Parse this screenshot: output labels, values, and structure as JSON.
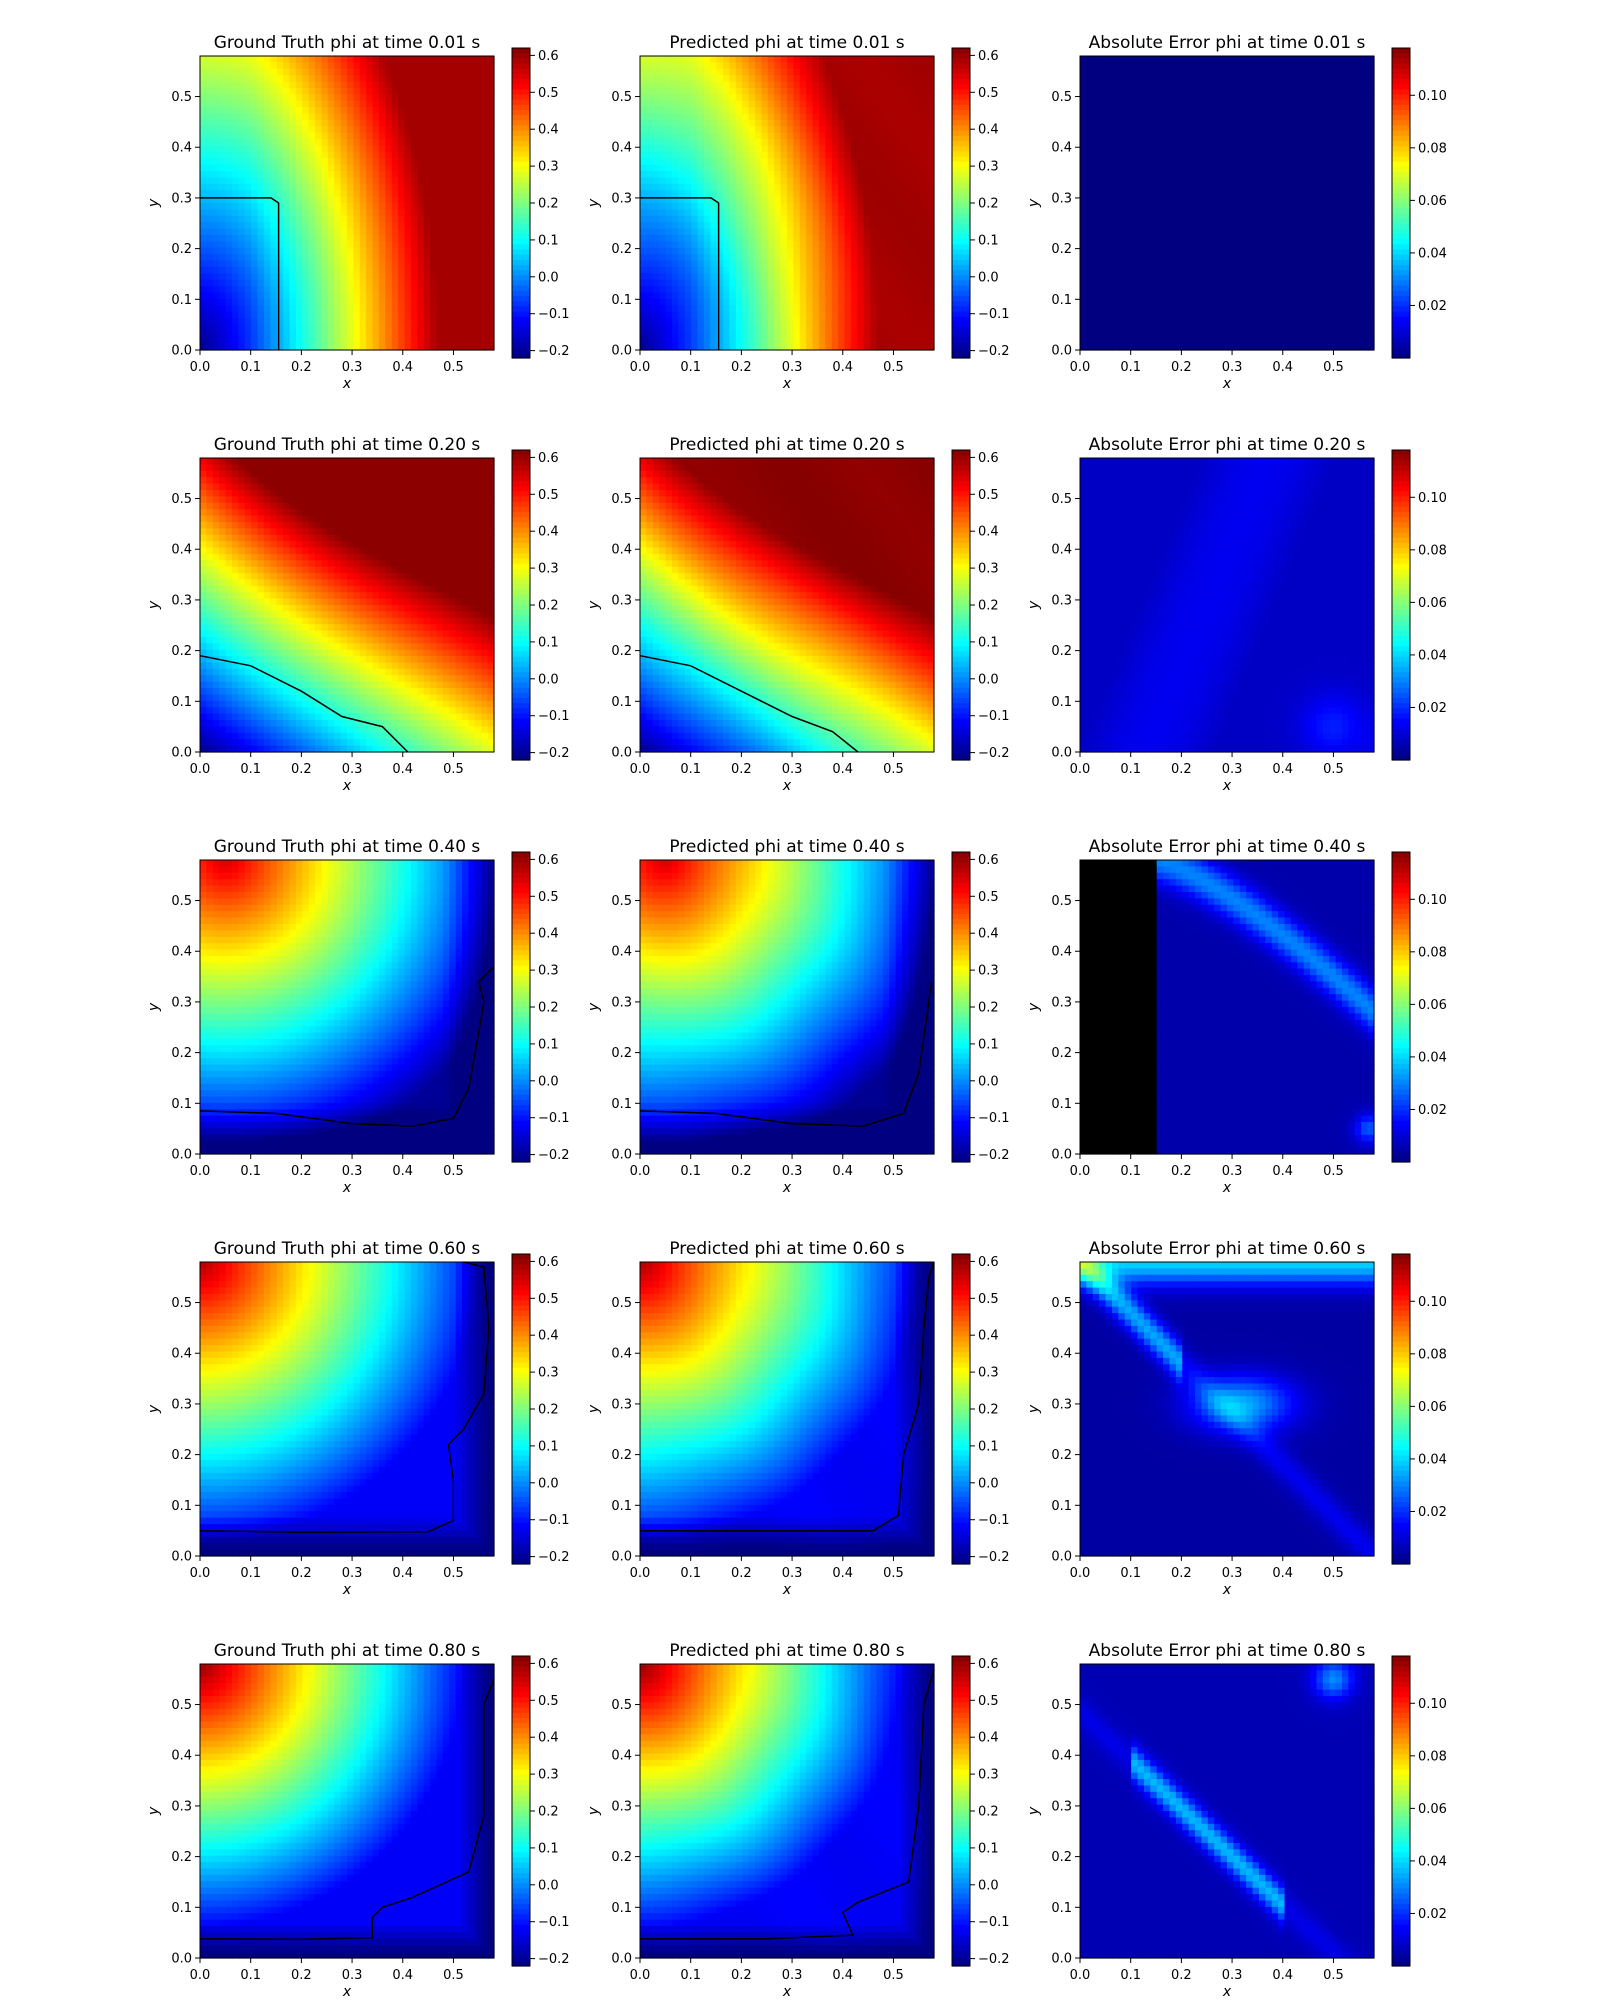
{
  "chart_data": [
    {
      "type": "heatmap",
      "row": 0,
      "col": 0,
      "kind": "gt",
      "title": "Ground Truth phi at time 0.01 s",
      "xlabel": "x",
      "ylabel": "y",
      "xlim": [
        0,
        0.58
      ],
      "ylim": [
        0,
        0.58
      ],
      "colorbar": {
        "range": [
          -0.22,
          0.62
        ],
        "ticks": [
          "0.6",
          "0.5",
          "0.4",
          "0.3",
          "0.2",
          "0.1",
          "0.0",
          "−0.1",
          "−0.2"
        ]
      },
      "contour": [
        [
          0,
          0.3
        ],
        [
          0.14,
          0.3
        ],
        [
          0.155,
          0.29
        ],
        [
          0.155,
          0
        ]
      ]
    },
    {
      "type": "heatmap",
      "row": 0,
      "col": 1,
      "kind": "pred",
      "title": "Predicted phi at time 0.01 s",
      "xlabel": "x",
      "ylabel": "y",
      "xlim": [
        0,
        0.58
      ],
      "ylim": [
        0,
        0.58
      ],
      "colorbar": {
        "range": [
          -0.22,
          0.62
        ],
        "ticks": [
          "0.6",
          "0.5",
          "0.4",
          "0.3",
          "0.2",
          "0.1",
          "0.0",
          "−0.1",
          "−0.2"
        ]
      },
      "contour": [
        [
          0,
          0.3
        ],
        [
          0.14,
          0.3
        ],
        [
          0.155,
          0.29
        ],
        [
          0.155,
          0
        ]
      ]
    },
    {
      "type": "heatmap",
      "row": 0,
      "col": 2,
      "kind": "err",
      "title": "Absolute Error phi at time 0.01 s",
      "xlabel": "x",
      "ylabel": "y",
      "xlim": [
        0,
        0.58
      ],
      "ylim": [
        0,
        0.58
      ],
      "colorbar": {
        "range": [
          0,
          0.118
        ],
        "ticks": [
          "0.10",
          "0.08",
          "0.06",
          "0.04",
          "0.02"
        ]
      }
    },
    {
      "type": "heatmap",
      "row": 1,
      "col": 0,
      "kind": "gt",
      "title": "Ground Truth phi at time 0.20 s",
      "xlabel": "x",
      "ylabel": "y",
      "xlim": [
        0,
        0.58
      ],
      "ylim": [
        0,
        0.58
      ],
      "colorbar": {
        "range": [
          -0.22,
          0.62
        ],
        "ticks": [
          "0.6",
          "0.5",
          "0.4",
          "0.3",
          "0.2",
          "0.1",
          "0.0",
          "−0.1",
          "−0.2"
        ]
      },
      "contour": [
        [
          0,
          0.19
        ],
        [
          0.1,
          0.17
        ],
        [
          0.2,
          0.12
        ],
        [
          0.28,
          0.07
        ],
        [
          0.36,
          0.05
        ],
        [
          0.41,
          0
        ]
      ]
    },
    {
      "type": "heatmap",
      "row": 1,
      "col": 1,
      "kind": "pred",
      "title": "Predicted phi at time 0.20 s",
      "xlabel": "x",
      "ylabel": "y",
      "xlim": [
        0,
        0.58
      ],
      "ylim": [
        0,
        0.58
      ],
      "colorbar": {
        "range": [
          -0.22,
          0.62
        ],
        "ticks": [
          "0.6",
          "0.5",
          "0.4",
          "0.3",
          "0.2",
          "0.1",
          "0.0",
          "−0.1",
          "−0.2"
        ]
      },
      "contour": [
        [
          0,
          0.19
        ],
        [
          0.1,
          0.17
        ],
        [
          0.2,
          0.12
        ],
        [
          0.3,
          0.07
        ],
        [
          0.38,
          0.04
        ],
        [
          0.43,
          0
        ]
      ]
    },
    {
      "type": "heatmap",
      "row": 1,
      "col": 2,
      "kind": "err",
      "title": "Absolute Error phi at time 0.20 s",
      "xlabel": "x",
      "ylabel": "y",
      "xlim": [
        0,
        0.58
      ],
      "ylim": [
        0,
        0.58
      ],
      "colorbar": {
        "range": [
          0,
          0.118
        ],
        "ticks": [
          "0.10",
          "0.08",
          "0.06",
          "0.04",
          "0.02"
        ]
      }
    },
    {
      "type": "heatmap",
      "row": 2,
      "col": 0,
      "kind": "gt",
      "title": "Ground Truth phi at time 0.40 s",
      "xlabel": "x",
      "ylabel": "y",
      "xlim": [
        0,
        0.58
      ],
      "ylim": [
        0,
        0.58
      ],
      "colorbar": {
        "range": [
          -0.22,
          0.62
        ],
        "ticks": [
          "0.6",
          "0.5",
          "0.4",
          "0.3",
          "0.2",
          "0.1",
          "0.0",
          "−0.1",
          "−0.2"
        ]
      },
      "contour": [
        [
          0,
          0.085
        ],
        [
          0.15,
          0.08
        ],
        [
          0.3,
          0.06
        ],
        [
          0.42,
          0.055
        ],
        [
          0.5,
          0.07
        ],
        [
          0.53,
          0.13
        ],
        [
          0.55,
          0.24
        ],
        [
          0.56,
          0.3
        ],
        [
          0.55,
          0.34
        ],
        [
          0.58,
          0.37
        ]
      ]
    },
    {
      "type": "heatmap",
      "row": 2,
      "col": 1,
      "kind": "pred",
      "title": "Predicted phi at time 0.40 s",
      "xlabel": "x",
      "ylabel": "y",
      "xlim": [
        0,
        0.58
      ],
      "ylim": [
        0,
        0.58
      ],
      "colorbar": {
        "range": [
          -0.22,
          0.62
        ],
        "ticks": [
          "0.6",
          "0.5",
          "0.4",
          "0.3",
          "0.2",
          "0.1",
          "0.0",
          "−0.1",
          "−0.2"
        ]
      },
      "contour": [
        [
          0,
          0.085
        ],
        [
          0.15,
          0.08
        ],
        [
          0.3,
          0.06
        ],
        [
          0.44,
          0.055
        ],
        [
          0.52,
          0.08
        ],
        [
          0.55,
          0.16
        ],
        [
          0.57,
          0.3
        ],
        [
          0.575,
          0.34
        ]
      ]
    },
    {
      "type": "heatmap",
      "row": 2,
      "col": 2,
      "kind": "err",
      "title": "Absolute Error phi at time 0.40 s",
      "xlabel": "x",
      "ylabel": "y",
      "xlim": [
        0,
        0.58
      ],
      "ylim": [
        0,
        0.58
      ],
      "colorbar": {
        "range": [
          0,
          0.118
        ],
        "ticks": [
          "0.10",
          "0.08",
          "0.06",
          "0.04",
          "0.02"
        ]
      }
    },
    {
      "type": "heatmap",
      "row": 3,
      "col": 0,
      "kind": "gt",
      "title": "Ground Truth phi at time 0.60 s",
      "xlabel": "x",
      "ylabel": "y",
      "xlim": [
        0,
        0.58
      ],
      "ylim": [
        0,
        0.58
      ],
      "colorbar": {
        "range": [
          -0.22,
          0.62
        ],
        "ticks": [
          "0.6",
          "0.5",
          "0.4",
          "0.3",
          "0.2",
          "0.1",
          "0.0",
          "−0.1",
          "−0.2"
        ]
      },
      "contour": [
        [
          0,
          0.05
        ],
        [
          0.2,
          0.047
        ],
        [
          0.45,
          0.048
        ],
        [
          0.5,
          0.07
        ],
        [
          0.5,
          0.15
        ],
        [
          0.49,
          0.22
        ],
        [
          0.52,
          0.25
        ],
        [
          0.56,
          0.32
        ],
        [
          0.57,
          0.45
        ],
        [
          0.56,
          0.57
        ],
        [
          0.52,
          0.58
        ]
      ]
    },
    {
      "type": "heatmap",
      "row": 3,
      "col": 1,
      "kind": "pred",
      "title": "Predicted phi at time 0.60 s",
      "xlabel": "x",
      "ylabel": "y",
      "xlim": [
        0,
        0.58
      ],
      "ylim": [
        0,
        0.58
      ],
      "colorbar": {
        "range": [
          -0.22,
          0.62
        ],
        "ticks": [
          "0.6",
          "0.5",
          "0.4",
          "0.3",
          "0.2",
          "0.1",
          "0.0",
          "−0.1",
          "−0.2"
        ]
      },
      "contour": [
        [
          0,
          0.05
        ],
        [
          0.3,
          0.05
        ],
        [
          0.46,
          0.05
        ],
        [
          0.51,
          0.08
        ],
        [
          0.52,
          0.2
        ],
        [
          0.55,
          0.3
        ],
        [
          0.56,
          0.45
        ],
        [
          0.57,
          0.55
        ],
        [
          0.58,
          0.58
        ]
      ]
    },
    {
      "type": "heatmap",
      "row": 3,
      "col": 2,
      "kind": "err",
      "title": "Absolute Error phi at time 0.60 s",
      "xlabel": "x",
      "ylabel": "y",
      "xlim": [
        0,
        0.58
      ],
      "ylim": [
        0,
        0.58
      ],
      "colorbar": {
        "range": [
          0,
          0.118
        ],
        "ticks": [
          "0.10",
          "0.08",
          "0.06",
          "0.04",
          "0.02"
        ]
      }
    },
    {
      "type": "heatmap",
      "row": 4,
      "col": 0,
      "kind": "gt",
      "title": "Ground Truth phi at time 0.80 s",
      "xlabel": "x",
      "ylabel": "y",
      "xlim": [
        0,
        0.58
      ],
      "ylim": [
        0,
        0.58
      ],
      "colorbar": {
        "range": [
          -0.22,
          0.62
        ],
        "ticks": [
          "0.6",
          "0.5",
          "0.4",
          "0.3",
          "0.2",
          "0.1",
          "0.0",
          "−0.1",
          "−0.2"
        ]
      },
      "contour": [
        [
          0,
          0.038
        ],
        [
          0.2,
          0.037
        ],
        [
          0.34,
          0.04
        ],
        [
          0.34,
          0.08
        ],
        [
          0.36,
          0.1
        ],
        [
          0.42,
          0.12
        ],
        [
          0.53,
          0.17
        ],
        [
          0.56,
          0.28
        ],
        [
          0.56,
          0.5
        ],
        [
          0.58,
          0.55
        ]
      ]
    },
    {
      "type": "heatmap",
      "row": 4,
      "col": 1,
      "kind": "pred",
      "title": "Predicted phi at time 0.80 s",
      "xlabel": "x",
      "ylabel": "y",
      "xlim": [
        0,
        0.58
      ],
      "ylim": [
        0,
        0.58
      ],
      "colorbar": {
        "range": [
          -0.22,
          0.62
        ],
        "ticks": [
          "0.6",
          "0.5",
          "0.4",
          "0.3",
          "0.2",
          "0.1",
          "0.0",
          "−0.1",
          "−0.2"
        ]
      },
      "contour": [
        [
          0,
          0.038
        ],
        [
          0.25,
          0.038
        ],
        [
          0.42,
          0.045
        ],
        [
          0.4,
          0.09
        ],
        [
          0.43,
          0.11
        ],
        [
          0.53,
          0.15
        ],
        [
          0.55,
          0.3
        ],
        [
          0.56,
          0.5
        ],
        [
          0.58,
          0.57
        ]
      ]
    },
    {
      "type": "heatmap",
      "row": 4,
      "col": 2,
      "kind": "err",
      "title": "Absolute Error phi at time 0.80 s",
      "xlabel": "x",
      "ylabel": "y",
      "xlim": [
        0,
        0.58
      ],
      "ylim": [
        0,
        0.58
      ],
      "colorbar": {
        "range": [
          0,
          0.118
        ],
        "ticks": [
          "0.10",
          "0.08",
          "0.06",
          "0.04",
          "0.02"
        ]
      }
    }
  ],
  "axis_ticks": {
    "x": [
      "0.0",
      "0.1",
      "0.2",
      "0.3",
      "0.4",
      "0.5"
    ],
    "y": [
      "0.0",
      "0.1",
      "0.2",
      "0.3",
      "0.4",
      "0.5"
    ]
  },
  "colormap": "jet"
}
